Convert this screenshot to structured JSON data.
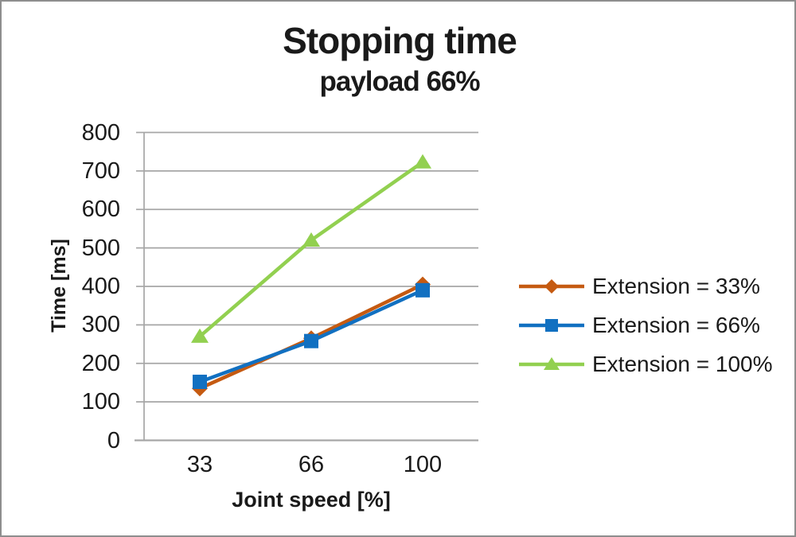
{
  "frame": {
    "border_color": "#8E8E8E",
    "background": "#FFFFFF"
  },
  "chart_data": {
    "type": "line",
    "title": "Stopping time",
    "subtitle": "payload 66%",
    "xlabel": "Joint speed [%]",
    "ylabel": "Time [ms]",
    "categories": [
      "33",
      "66",
      "100"
    ],
    "series": [
      {
        "name": "Extension = 33%",
        "marker": "diamond",
        "color": "#C55A11",
        "values": [
          135,
          265,
          405
        ]
      },
      {
        "name": "Extension = 66%",
        "marker": "square",
        "color": "#1170C1",
        "values": [
          152,
          258,
          390
        ]
      },
      {
        "name": "Extension = 100%",
        "marker": "triangle",
        "color": "#92D050",
        "values": [
          270,
          520,
          723
        ]
      }
    ],
    "ylim": [
      0,
      800
    ],
    "ytick_step": 100,
    "yticks": [
      "0",
      "100",
      "200",
      "300",
      "400",
      "500",
      "600",
      "700",
      "800"
    ],
    "grid": "horizontal",
    "legend_position": "right",
    "gridline_color": "#A6A6A6",
    "text_color": "#1A1A1A"
  }
}
